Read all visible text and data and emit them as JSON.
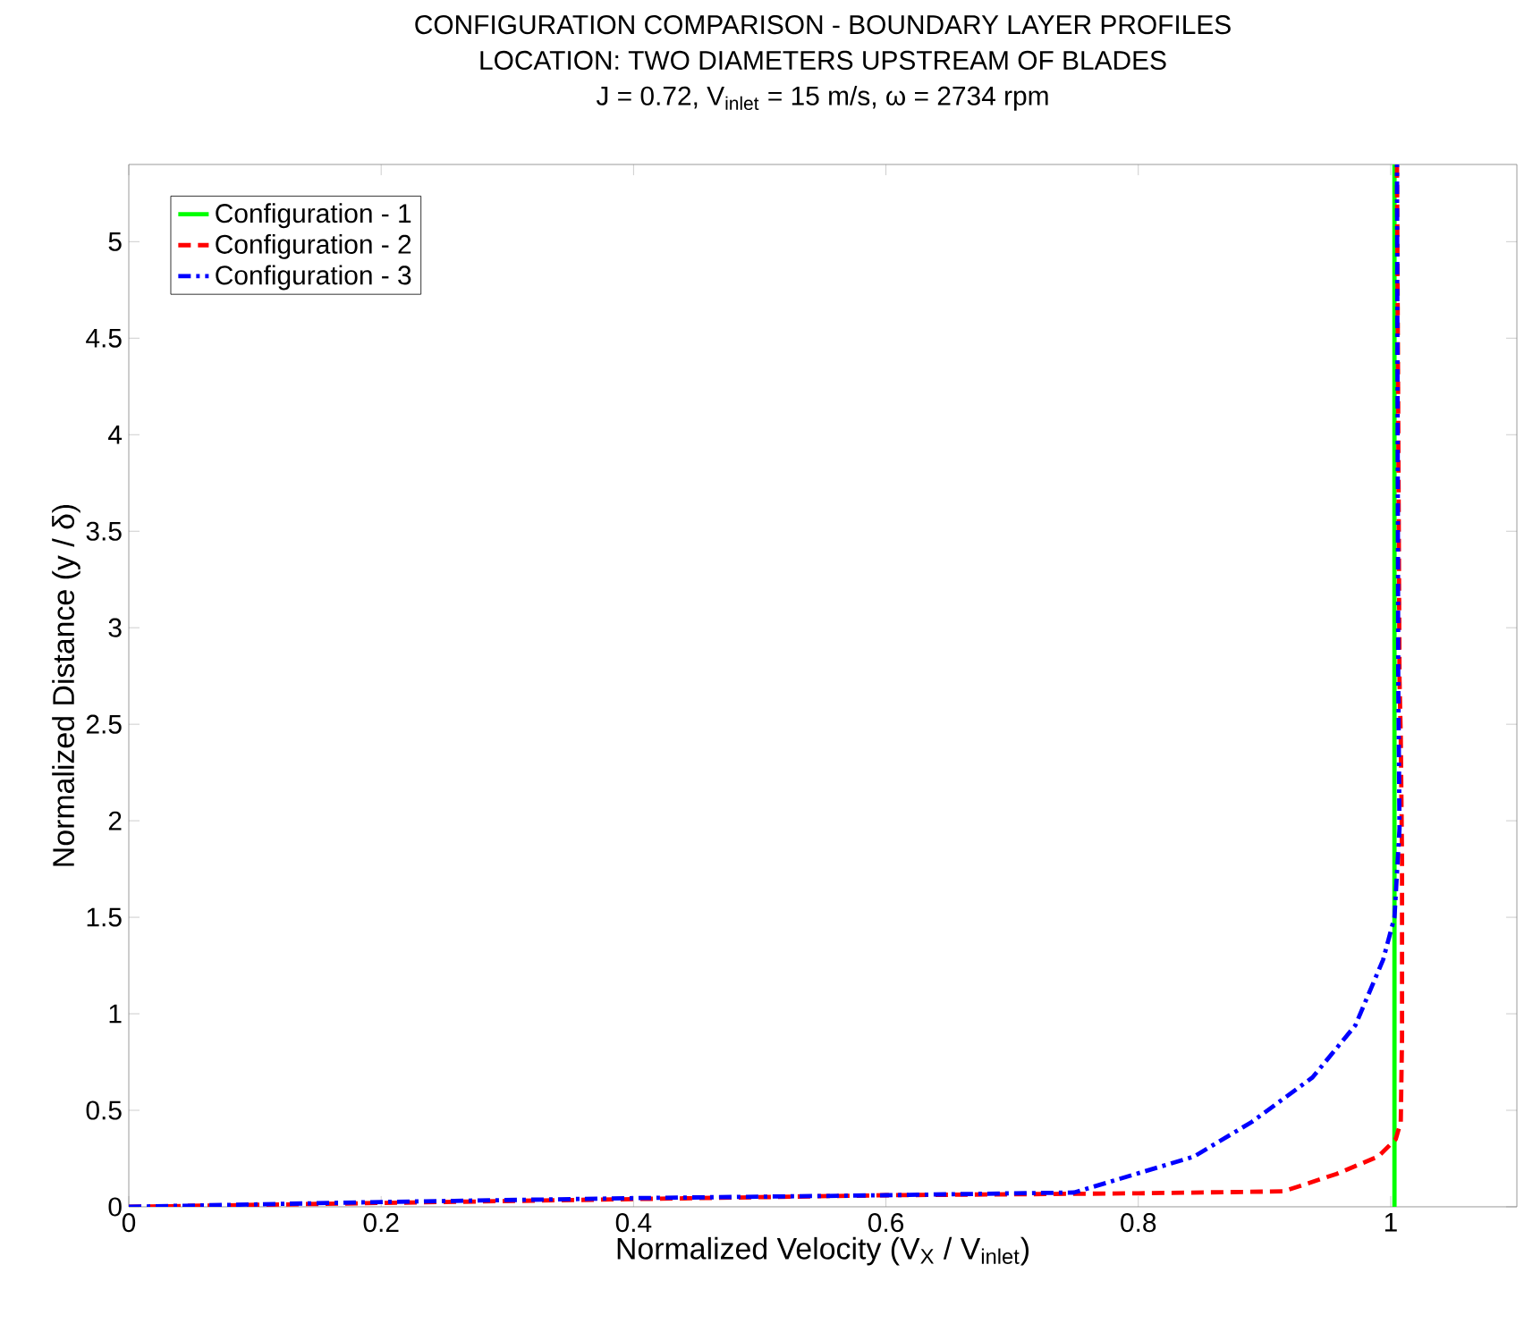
{
  "chart_data": {
    "type": "line",
    "title": "CONFIGURATION COMPARISON - BOUNDARY LAYER PROFILES",
    "subtitle": "LOCATION: TWO DIAMETERS UPSTREAM OF BLADES",
    "annotations": [
      "J = 0.72, V$_{inlet}$ = 15 m/s, ω = 2734 rpm"
    ],
    "xlabel": "Normalized Velocity  (V$_{X}$ / V$_{inlet}$)",
    "ylabel": "Normalized Distance  (y / δ)",
    "series": [
      {
        "name": "Configuration - 1",
        "color": "#00ff00",
        "line_style": "solid",
        "x": [
          1.003,
          1.003
        ],
        "values": [
          0,
          5.4
        ]
      },
      {
        "name": "Configuration - 2",
        "color": "#ff0000",
        "line_style": "dashed",
        "x": [
          0,
          0.2,
          0.4,
          0.6,
          0.8,
          0.915,
          0.957,
          0.99,
          1.004,
          1.008,
          1.009,
          1.009,
          1.008,
          1.007,
          1.005
        ],
        "values": [
          0,
          0.02,
          0.04,
          0.06,
          0.07,
          0.08,
          0.17,
          0.26,
          0.35,
          0.44,
          0.88,
          1.8,
          2.43,
          2.73,
          5.4
        ]
      },
      {
        "name": "Configuration - 3",
        "color": "#0000ff",
        "line_style": "dashdot",
        "x": [
          0,
          0.2,
          0.4,
          0.6,
          0.7,
          0.749,
          0.844,
          0.89,
          0.938,
          0.972,
          0.994,
          1.003,
          1.007,
          1.006,
          1.005
        ],
        "values": [
          0,
          0.025,
          0.045,
          0.06,
          0.07,
          0.074,
          0.26,
          0.44,
          0.67,
          0.94,
          1.28,
          1.5,
          1.96,
          2.73,
          5.4
        ]
      }
    ],
    "xlim": [
      0,
      1.1
    ],
    "ylim": [
      0,
      5.4
    ],
    "xticks": [
      0,
      0.2,
      0.4,
      0.6,
      0.8,
      1
    ],
    "yticks": [
      0,
      0.5,
      1,
      1.5,
      2,
      2.5,
      3,
      3.5,
      4,
      4.5,
      5
    ],
    "legend": "top left",
    "grid": false
  }
}
